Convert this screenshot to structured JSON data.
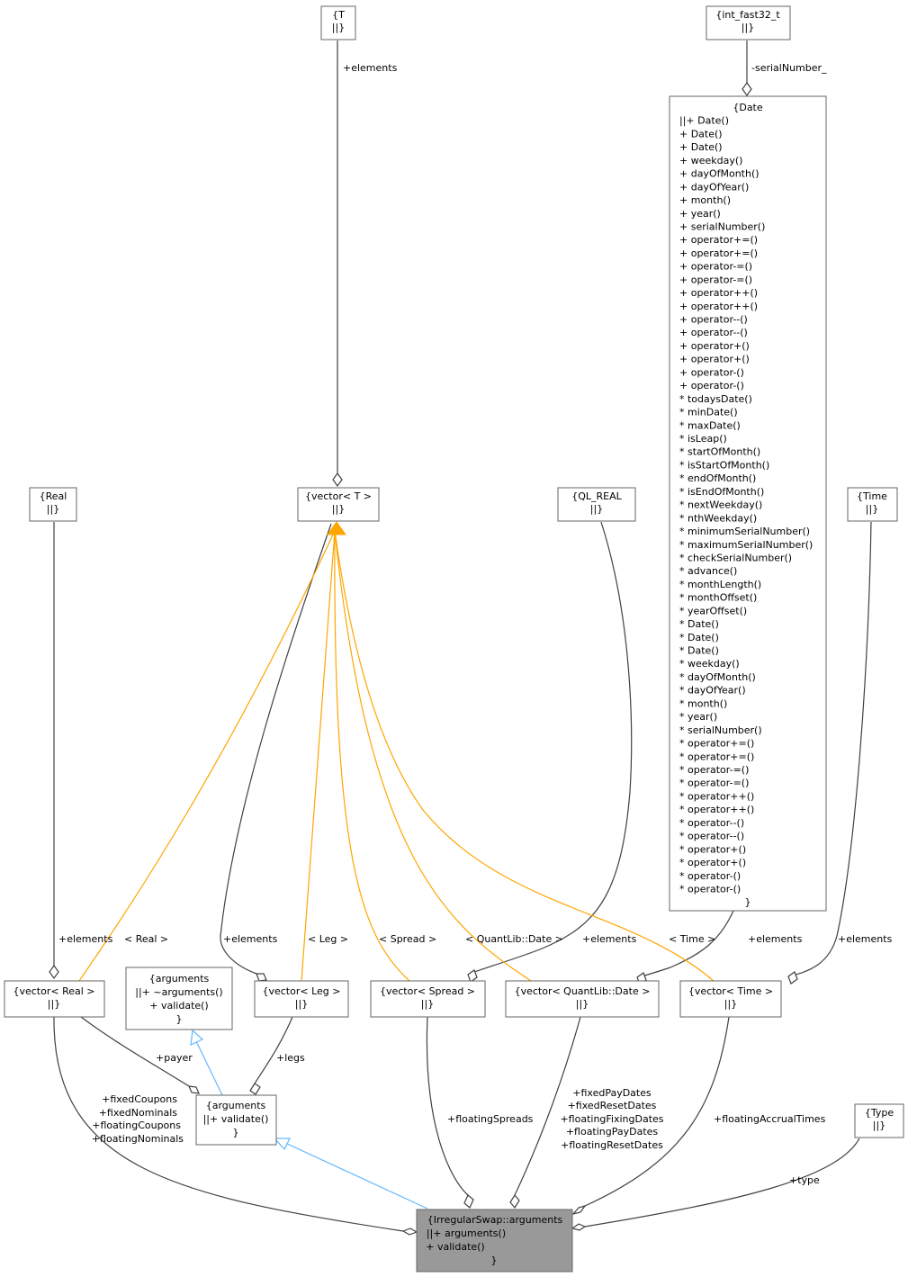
{
  "nodes": {
    "T": {
      "lines": [
        "{T",
        "||}"
      ]
    },
    "int_fast32_t": {
      "lines": [
        "{int_fast32_t",
        "||}"
      ]
    },
    "Date": {
      "lines": [
        "{Date",
        "||+ Date()",
        "+ Date()",
        "+ Date()",
        "+ weekday()",
        "+ dayOfMonth()",
        "+ dayOfYear()",
        "+ month()",
        "+ year()",
        "+ serialNumber()",
        "+ operator+=()",
        "+ operator+=()",
        "+ operator-=()",
        "+ operator-=()",
        "+ operator++()",
        "+ operator++()",
        "+ operator--()",
        "+ operator--()",
        "+ operator+()",
        "+ operator+()",
        "+ operator-()",
        "+ operator-()",
        "* todaysDate()",
        "* minDate()",
        "* maxDate()",
        "* isLeap()",
        "* startOfMonth()",
        "* isStartOfMonth()",
        "* endOfMonth()",
        "* isEndOfMonth()",
        "* nextWeekday()",
        "* nthWeekday()",
        "* minimumSerialNumber()",
        "* maximumSerialNumber()",
        "* checkSerialNumber()",
        "* advance()",
        "* monthLength()",
        "* monthOffset()",
        "* yearOffset()",
        "* Date()",
        "* Date()",
        "* Date()",
        "* weekday()",
        "* dayOfMonth()",
        "* dayOfYear()",
        "* month()",
        "* year()",
        "* serialNumber()",
        "* operator+=()",
        "* operator+=()",
        "* operator-=()",
        "* operator-=()",
        "* operator++()",
        "* operator++()",
        "* operator--()",
        "* operator--()",
        "* operator+()",
        "* operator+()",
        "* operator-()",
        "* operator-()",
        "}"
      ]
    },
    "Real": {
      "lines": [
        "{Real",
        "||}"
      ]
    },
    "vectorT": {
      "lines": [
        "{vector< T >",
        "||}"
      ]
    },
    "QL_REAL": {
      "lines": [
        "{QL_REAL",
        "||}"
      ]
    },
    "Time": {
      "lines": [
        "{Time",
        "||}"
      ]
    },
    "vectorReal": {
      "lines": [
        "{vector< Real >",
        "||}"
      ]
    },
    "argumentsBase": {
      "lines": [
        "{arguments",
        "||+ ~arguments()",
        "+ validate()",
        "}"
      ]
    },
    "vectorLeg": {
      "lines": [
        "{vector< Leg >",
        "||}"
      ]
    },
    "vectorSpread": {
      "lines": [
        "{vector< Spread >",
        "||}"
      ]
    },
    "vectorDate": {
      "lines": [
        "{vector< QuantLib::Date >",
        "||}"
      ]
    },
    "vectorTime": {
      "lines": [
        "{vector< Time >",
        "||}"
      ]
    },
    "arguments": {
      "lines": [
        "{arguments",
        "||+ validate()",
        "}"
      ]
    },
    "Type": {
      "lines": [
        "{Type",
        "||}"
      ]
    },
    "IrregularSwapArguments": {
      "lines": [
        "{IrregularSwap::arguments",
        "||+ arguments()",
        "+ validate()",
        "}"
      ]
    }
  },
  "edge_labels": {
    "t_elements": [
      "+elements"
    ],
    "serial_number": [
      "-serialNumber_"
    ],
    "real_elements": [
      "+elements"
    ],
    "tmpl_real": [
      "< Real >"
    ],
    "leg_elements": [
      "+elements"
    ],
    "tmpl_leg": [
      "< Leg >"
    ],
    "tmpl_spread": [
      "< Spread >"
    ],
    "tmpl_date": [
      "< QuantLib::Date >"
    ],
    "qlreal_elements": [
      "+elements"
    ],
    "tmpl_time": [
      "< Time >"
    ],
    "date_elements": [
      "+elements"
    ],
    "time_elements": [
      "+elements"
    ],
    "payer": [
      "+payer"
    ],
    "legs": [
      "+legs"
    ],
    "fixed_members": [
      "+fixedCoupons",
      "+fixedNominals",
      "+floatingCoupons",
      "+floatingNominals"
    ],
    "floating_spreads": [
      "+floatingSpreads"
    ],
    "date_members": [
      "+fixedPayDates",
      "+fixedResetDates",
      "+floatingFixingDates",
      "+floatingPayDates",
      "+floatingResetDates"
    ],
    "floating_accrual": [
      "+floatingAccrualTimes"
    ],
    "type": [
      "+type"
    ]
  },
  "colors": {
    "aggregation_edge": "#404040",
    "template_edge": "#ffa500",
    "inheritance_edge": "#63b8ff",
    "focus_node_fill": "#999999",
    "node_border": "#666666"
  }
}
